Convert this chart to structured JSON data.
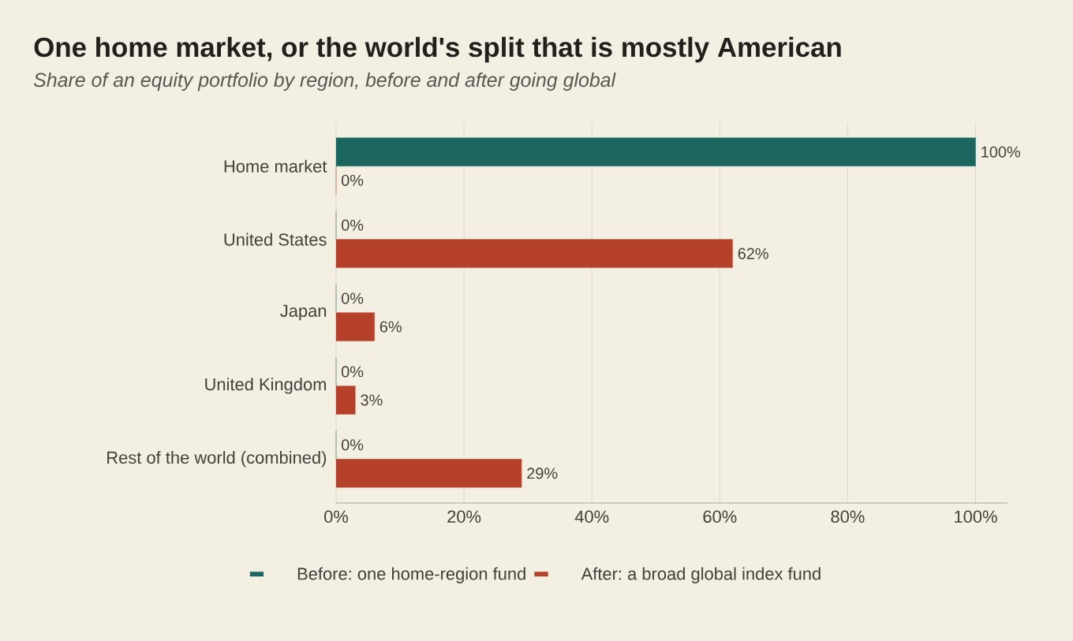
{
  "chart_data": {
    "type": "bar",
    "orientation": "horizontal",
    "title": "One home market, or the world's split that is mostly American",
    "subtitle": "Share of an equity portfolio by region, before and after going global",
    "categories": [
      "Home market",
      "United States",
      "Japan",
      "United Kingdom",
      "Rest of the world (combined)"
    ],
    "series": [
      {
        "name": "Before: one home-region fund",
        "color": "#1b665e",
        "values": [
          100,
          0,
          0,
          0,
          0
        ],
        "value_labels": [
          "100%",
          "0%",
          "0%",
          "0%",
          "0%"
        ]
      },
      {
        "name": "After: a broad global index fund",
        "color": "#b5412b",
        "values": [
          0,
          62,
          6,
          3,
          29
        ],
        "value_labels": [
          "0%",
          "62%",
          "6%",
          "3%",
          "29%"
        ]
      }
    ],
    "xlim": [
      0,
      105
    ],
    "xticks": [
      {
        "value": 0,
        "label": "0%"
      },
      {
        "value": 20,
        "label": "20%"
      },
      {
        "value": 40,
        "label": "40%"
      },
      {
        "value": 60,
        "label": "60%"
      },
      {
        "value": 80,
        "label": "80%"
      },
      {
        "value": 100,
        "label": "100%"
      }
    ],
    "grid": "x",
    "legend": "bottom"
  }
}
